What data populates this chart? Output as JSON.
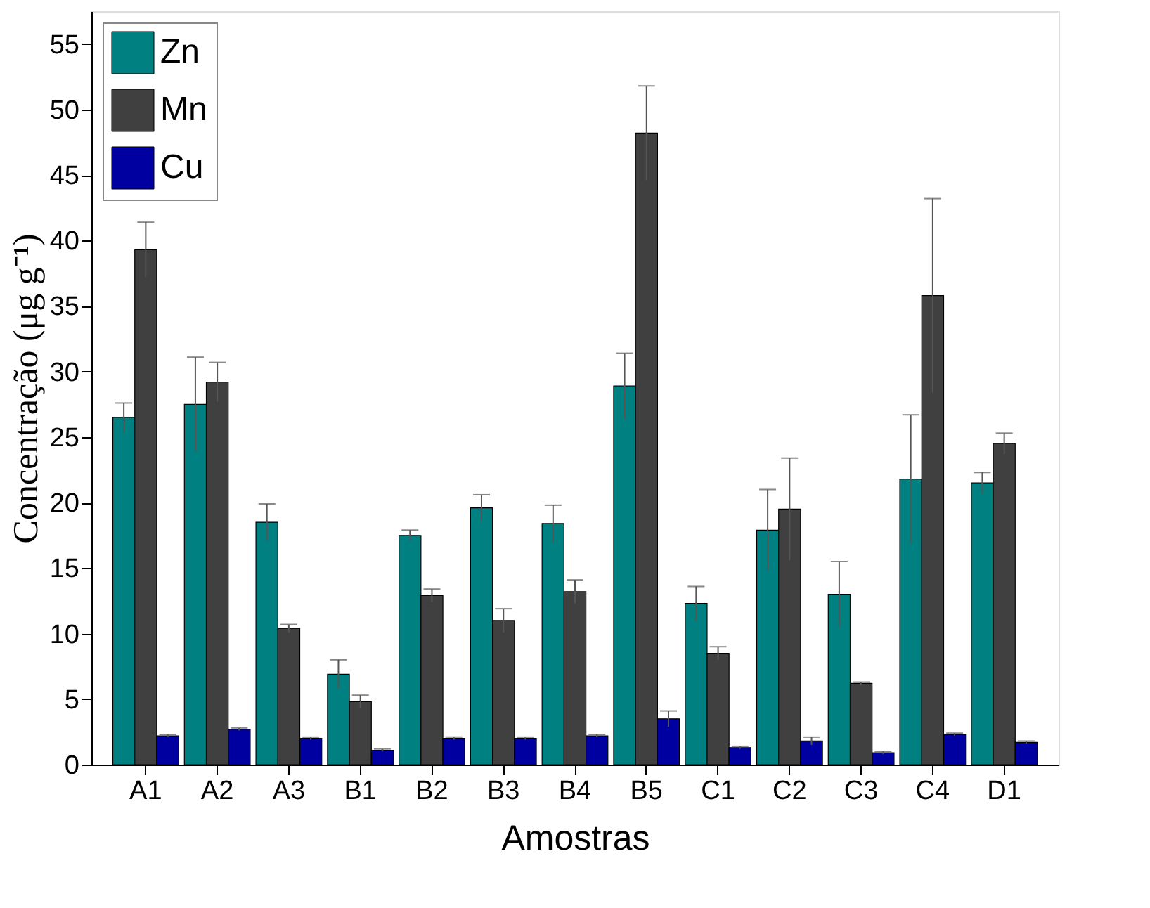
{
  "chart_data": {
    "type": "bar",
    "xlabel": "Amostras",
    "ylabel": "Concentração (μg g⁻¹)",
    "categories": [
      "A1",
      "A2",
      "A3",
      "B1",
      "B2",
      "B3",
      "B4",
      "B5",
      "C1",
      "C2",
      "C3",
      "C4",
      "D1"
    ],
    "series": [
      {
        "name": "Zn",
        "color": "#008080",
        "values": [
          26.5,
          27.5,
          18.5,
          6.9,
          17.5,
          19.6,
          18.4,
          28.9,
          12.3,
          17.9,
          13.0,
          21.8,
          21.5
        ],
        "errors": [
          1.1,
          3.6,
          1.4,
          1.1,
          0.4,
          1.0,
          1.4,
          2.5,
          1.3,
          3.1,
          2.5,
          4.9,
          0.8
        ]
      },
      {
        "name": "Mn",
        "color": "#404040",
        "values": [
          39.3,
          29.2,
          10.4,
          4.8,
          12.9,
          11.0,
          13.2,
          48.2,
          8.5,
          19.5,
          6.2,
          35.8,
          24.5
        ],
        "errors": [
          2.1,
          1.5,
          0.3,
          0.5,
          0.5,
          0.9,
          0.9,
          3.6,
          0.5,
          3.9,
          0.1,
          7.4,
          0.8
        ]
      },
      {
        "name": "Cu",
        "color": "#0000a0",
        "values": [
          2.2,
          2.7,
          2.0,
          1.1,
          2.0,
          2.0,
          2.2,
          3.5,
          1.3,
          1.8,
          0.9,
          2.3,
          1.7
        ],
        "errors": [
          0.1,
          0.1,
          0.1,
          0.1,
          0.1,
          0.1,
          0.1,
          0.6,
          0.1,
          0.3,
          0.1,
          0.1,
          0.1
        ]
      }
    ],
    "ylim": [
      0,
      57.5
    ],
    "yticks": [
      0,
      5,
      10,
      15,
      20,
      25,
      30,
      35,
      40,
      45,
      50,
      55
    ],
    "grid": false,
    "legend": "top left"
  }
}
